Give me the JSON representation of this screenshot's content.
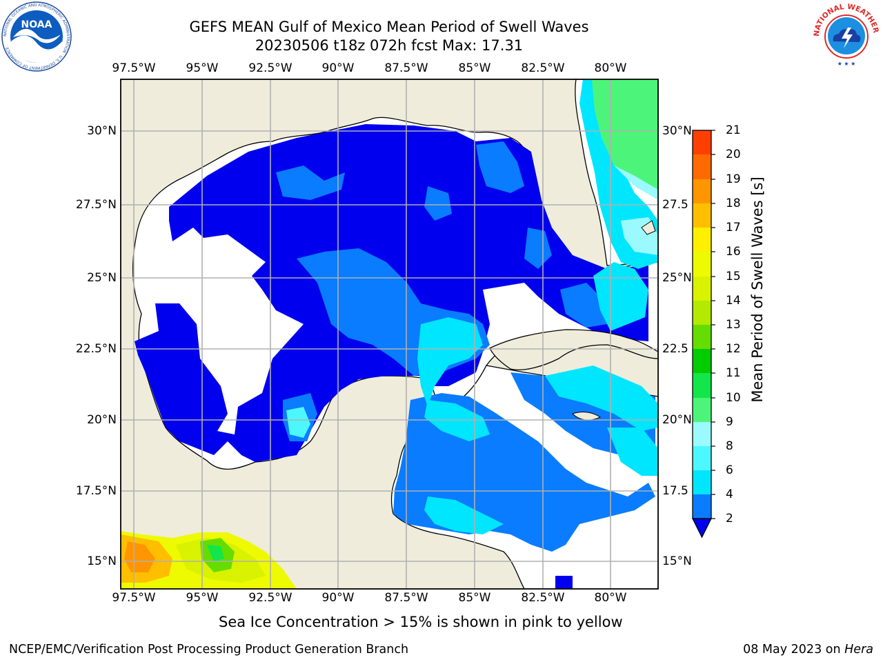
{
  "title": {
    "line1": "GEFS MEAN Gulf of Mexico Mean Period of Swell Waves",
    "line2": "20230506 t18z 072h fcst   Max: 17.31"
  },
  "logos": {
    "noaa": {
      "text": "NOAA",
      "ring_text": "NATIONAL OCEANIC AND ATMOSPHERIC ADMINISTRATION · U.S. DEPARTMENT OF COMMERCE"
    },
    "nws": {
      "ring_text": "NATIONAL WEATHER SERVICE"
    }
  },
  "map": {
    "lon_ticks": [
      "97.5°W",
      "95°W",
      "92.5°W",
      "90°W",
      "87.5°W",
      "85°W",
      "82.5°W",
      "80°W"
    ],
    "lat_ticks_left": [
      "30°N",
      "27.5°N",
      "25°N",
      "22.5°N",
      "20°N",
      "17.5°N",
      "15°N"
    ],
    "lat_ticks_right": [
      "30°N",
      "27.5",
      "25°N",
      "22.5",
      "20°N",
      "17.5",
      "15°N"
    ],
    "land_color": "#efecdc",
    "no_data_color": "#ffffff"
  },
  "colorbar": {
    "label": "Mean Period of Swell Waves [s]",
    "ticks": [
      "2",
      "4",
      "6",
      "8",
      "9",
      "10",
      "11",
      "12",
      "13",
      "14",
      "15",
      "16",
      "17",
      "18",
      "19",
      "20",
      "21"
    ],
    "colors": [
      "#0a7cff",
      "#00e6ff",
      "#4cf7ff",
      "#9bfaff",
      "#4cf57a",
      "#12e64a",
      "#00cc00",
      "#66dd00",
      "#b3ea00",
      "#d9f200",
      "#eefa00",
      "#fff000",
      "#ffbf00",
      "#ff9500",
      "#ff6a00",
      "#ff3f00",
      "#ff1200"
    ],
    "under_color": "#0000ee"
  },
  "caption": "Sea Ice Concentration > 15% is shown in pink to yellow",
  "footer": {
    "left": "NCEP/EMC/Verification Post Processing Product Generation Branch",
    "date": "08 May 2023 on ",
    "host": "Hera"
  }
}
